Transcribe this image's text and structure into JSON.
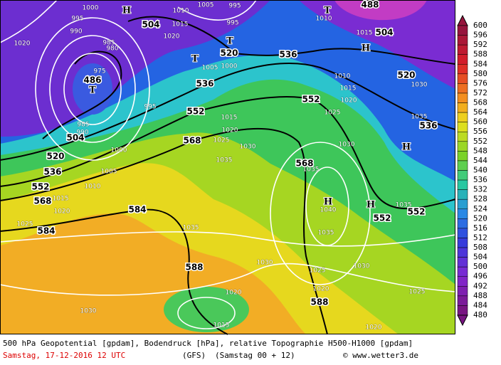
{
  "colorbar": {
    "labels": [
      "600",
      "596",
      "592",
      "588",
      "584",
      "580",
      "576",
      "572",
      "568",
      "564",
      "560",
      "556",
      "552",
      "548",
      "544",
      "540",
      "536",
      "532",
      "528",
      "524",
      "520",
      "516",
      "512",
      "508",
      "504",
      "500",
      "496",
      "492",
      "488",
      "484",
      "480"
    ]
  },
  "map": {
    "geopotential_labels": [
      "504",
      "520",
      "536",
      "536",
      "552",
      "552",
      "568",
      "536",
      "552",
      "568",
      "584",
      "584",
      "568",
      "552",
      "552",
      "520",
      "536",
      "504",
      "488",
      "504",
      "520",
      "588",
      "588",
      "486"
    ],
    "markers": [
      "T",
      "T",
      "T",
      "T",
      "H",
      "H",
      "H",
      "H",
      "H"
    ],
    "pressure_labels": [
      "1035",
      "1035",
      "1040",
      "1035",
      "1035",
      "1030",
      "1025",
      "1020",
      "1030",
      "1025",
      "1035",
      "1030",
      "1020",
      "1015",
      "1020",
      "1030",
      "1025",
      "1020",
      "1015",
      "1010",
      "1035",
      "1030",
      "1015",
      "1020",
      "1025",
      "1030",
      "1005",
      "1000",
      "995",
      "995",
      "1005",
      "1010",
      "1015",
      "1020",
      "995",
      "990",
      "1000",
      "1020",
      "1015",
      "1015",
      "1020",
      "1025",
      "1000",
      "1005",
      "1010",
      "985",
      "980",
      "975",
      "985",
      "990",
      "995",
      "1010"
    ]
  },
  "footer": {
    "description": "500 hPa Geopotential [gpdam], Bodendruck [hPa], relative Topographie H500-H1000 [gpdam]",
    "date": "Samstag, 17-12-2016  12 UTC",
    "model": "(GFS)",
    "run": "(Samstag 00 + 12)",
    "credit": "© www.wetter3.de"
  }
}
